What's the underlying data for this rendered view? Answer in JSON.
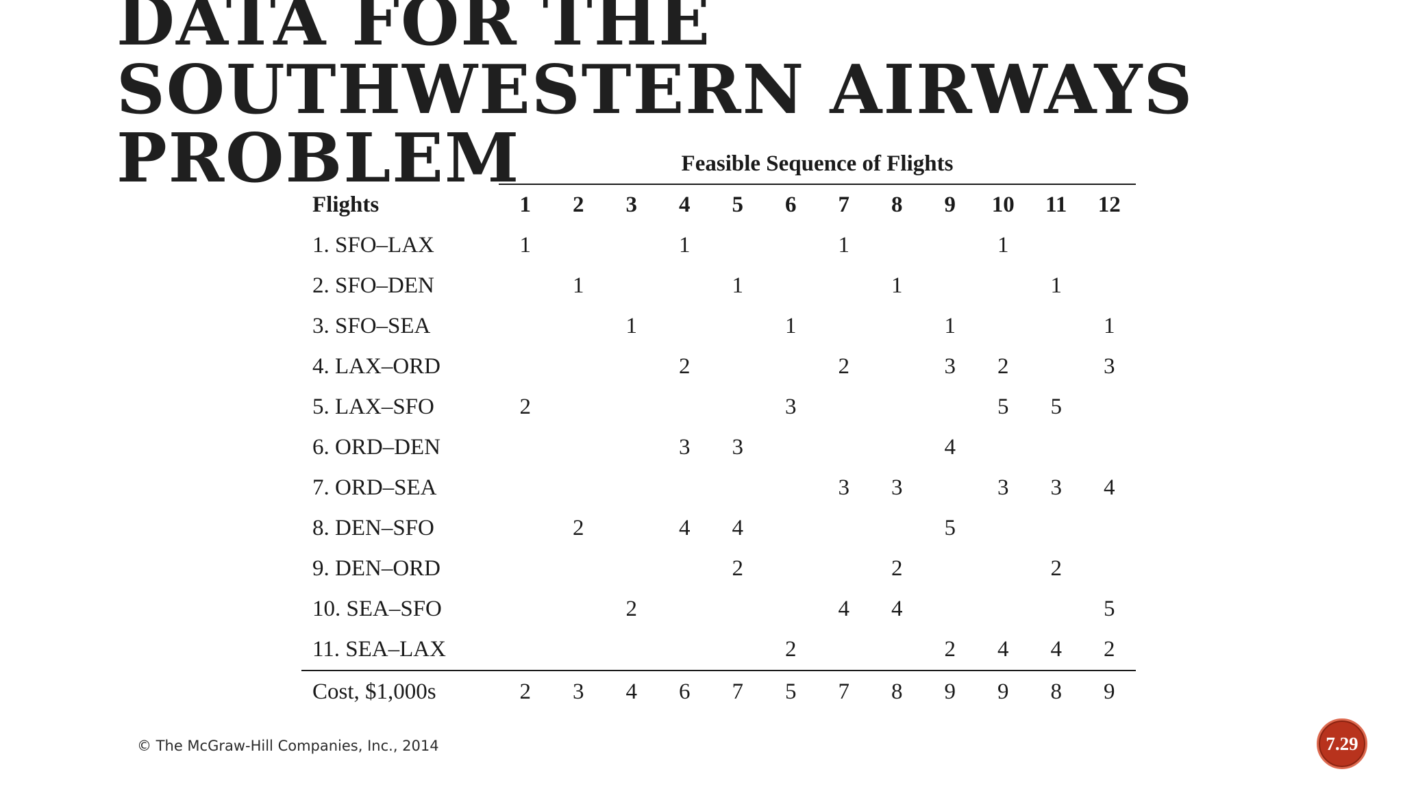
{
  "title": "DATA FOR THE SOUTHWESTERN AIRWAYS PROBLEM",
  "table": {
    "group_header": "Feasible Sequence of Flights",
    "row_header": "Flights",
    "columns": [
      "1",
      "2",
      "3",
      "4",
      "5",
      "6",
      "7",
      "8",
      "9",
      "10",
      "11",
      "12"
    ],
    "rows": [
      {
        "label": "1. SFO–LAX",
        "cells": [
          "1",
          "",
          "",
          "1",
          "",
          "",
          "1",
          "",
          "",
          "1",
          "",
          ""
        ]
      },
      {
        "label": "2. SFO–DEN",
        "cells": [
          "",
          "1",
          "",
          "",
          "1",
          "",
          "",
          "1",
          "",
          "",
          "1",
          ""
        ]
      },
      {
        "label": "3. SFO–SEA",
        "cells": [
          "",
          "",
          "1",
          "",
          "",
          "1",
          "",
          "",
          "1",
          "",
          "",
          "1"
        ]
      },
      {
        "label": "4. LAX–ORD",
        "cells": [
          "",
          "",
          "",
          "2",
          "",
          "",
          "2",
          "",
          "3",
          "2",
          "",
          "3"
        ]
      },
      {
        "label": "5. LAX–SFO",
        "cells": [
          "2",
          "",
          "",
          "",
          "",
          "3",
          "",
          "",
          "",
          "5",
          "5",
          ""
        ]
      },
      {
        "label": "6. ORD–DEN",
        "cells": [
          "",
          "",
          "",
          "3",
          "3",
          "",
          "",
          "",
          "4",
          "",
          "",
          ""
        ]
      },
      {
        "label": "7. ORD–SEA",
        "cells": [
          "",
          "",
          "",
          "",
          "",
          "",
          "3",
          "3",
          "",
          "3",
          "3",
          "4"
        ]
      },
      {
        "label": "8. DEN–SFO",
        "cells": [
          "",
          "2",
          "",
          "4",
          "4",
          "",
          "",
          "",
          "5",
          "",
          "",
          ""
        ]
      },
      {
        "label": "9. DEN–ORD",
        "cells": [
          "",
          "",
          "",
          "",
          "2",
          "",
          "",
          "2",
          "",
          "",
          "2",
          ""
        ]
      },
      {
        "label": "10. SEA–SFO",
        "cells": [
          "",
          "",
          "2",
          "",
          "",
          "",
          "4",
          "4",
          "",
          "",
          "",
          "5"
        ]
      },
      {
        "label": "11. SEA–LAX",
        "cells": [
          "",
          "",
          "",
          "",
          "",
          "2",
          "",
          "",
          "2",
          "4",
          "4",
          "2"
        ]
      }
    ],
    "cost_label": "Cost, $1,000s",
    "cost_values": [
      "2",
      "3",
      "4",
      "6",
      "7",
      "5",
      "7",
      "8",
      "9",
      "9",
      "8",
      "9"
    ]
  },
  "footer": {
    "copyright": "© The McGraw-Hill Companies, Inc., 2014"
  },
  "page_number": "7.29",
  "colors": {
    "badge": "#b8331d",
    "text": "#1a1a1a",
    "background": "#ffffff"
  }
}
